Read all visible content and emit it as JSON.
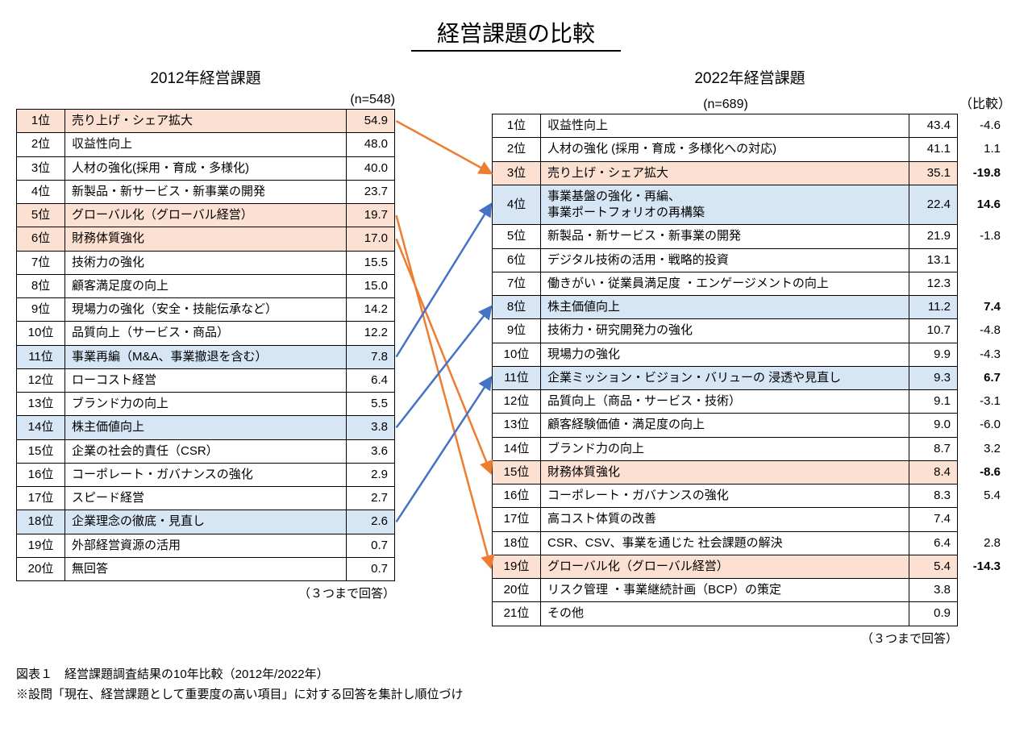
{
  "title": "経営課題の比較",
  "left": {
    "heading": "2012年経営課題",
    "n_label": "(n=548)",
    "footer": "（３つまで回答）",
    "rows": [
      {
        "rank": "1位",
        "label": "売り上げ・シェア拡大",
        "value": "54.9",
        "hl": "orange"
      },
      {
        "rank": "2位",
        "label": "収益性向上",
        "value": "48.0"
      },
      {
        "rank": "3位",
        "label": "人材の強化(採用・育成・多様化)",
        "value": "40.0"
      },
      {
        "rank": "4位",
        "label": "新製品・新サービス・新事業の開発",
        "value": "23.7"
      },
      {
        "rank": "5位",
        "label": "グローバル化（グローバル経営）",
        "value": "19.7",
        "hl": "orange"
      },
      {
        "rank": "6位",
        "label": "財務体質強化",
        "value": "17.0",
        "hl": "orange"
      },
      {
        "rank": "7位",
        "label": "技術力の強化",
        "value": "15.5"
      },
      {
        "rank": "8位",
        "label": "顧客満足度の向上",
        "value": "15.0"
      },
      {
        "rank": "9位",
        "label": "現場力の強化（安全・技能伝承など）",
        "value": "14.2"
      },
      {
        "rank": "10位",
        "label": "品質向上（サービス・商品）",
        "value": "12.2"
      },
      {
        "rank": "11位",
        "label": "事業再編（M&A、事業撤退を含む）",
        "value": "7.8",
        "hl": "blue"
      },
      {
        "rank": "12位",
        "label": "ローコスト経営",
        "value": "6.4"
      },
      {
        "rank": "13位",
        "label": "ブランド力の向上",
        "value": "5.5"
      },
      {
        "rank": "14位",
        "label": "株主価値向上",
        "value": "3.8",
        "hl": "blue"
      },
      {
        "rank": "15位",
        "label": "企業の社会的責任（CSR）",
        "value": "3.6"
      },
      {
        "rank": "16位",
        "label": "コーポレート・ガバナンスの強化",
        "value": "2.9"
      },
      {
        "rank": "17位",
        "label": "スピード経営",
        "value": "2.7"
      },
      {
        "rank": "18位",
        "label": "企業理念の徹底・見直し",
        "value": "2.6",
        "hl": "blue"
      },
      {
        "rank": "19位",
        "label": "外部経営資源の活用",
        "value": "0.7"
      },
      {
        "rank": "20位",
        "label": "無回答",
        "value": "0.7"
      }
    ]
  },
  "right": {
    "heading": "2022年経営課題",
    "n_label": "(n=689)",
    "compare_label": "（比較）",
    "footer": "（３つまで回答）",
    "rows": [
      {
        "rank": "1位",
        "label": "収益性向上",
        "value": "43.4",
        "diff": "-4.6"
      },
      {
        "rank": "2位",
        "label": "人材の強化 (採用・育成・多様化への対応)",
        "value": "41.1",
        "diff": "1.1"
      },
      {
        "rank": "3位",
        "label": "売り上げ・シェア拡大",
        "value": "35.1",
        "diff": "-19.8",
        "hl": "orange",
        "bold": true
      },
      {
        "rank": "4位",
        "label": "事業基盤の強化・再編、\n事業ポートフォリオの再構築",
        "value": "22.4",
        "diff": "14.6",
        "hl": "blue",
        "bold": true
      },
      {
        "rank": "5位",
        "label": "新製品・新サービス・新事業の開発",
        "value": "21.9",
        "diff": "-1.8"
      },
      {
        "rank": "6位",
        "label": "デジタル技術の活用・戦略的投資",
        "value": "13.1",
        "diff": ""
      },
      {
        "rank": "7位",
        "label": "働きがい・従業員満足度 ・エンゲージメントの向上",
        "value": "12.3",
        "diff": ""
      },
      {
        "rank": "8位",
        "label": "株主価値向上",
        "value": "11.2",
        "diff": "7.4",
        "hl": "blue",
        "bold": true
      },
      {
        "rank": "9位",
        "label": "技術力・研究開発力の強化",
        "value": "10.7",
        "diff": "-4.8"
      },
      {
        "rank": "10位",
        "label": "現場力の強化",
        "value": "9.9",
        "diff": "-4.3"
      },
      {
        "rank": "11位",
        "label": "企業ミッション・ビジョン・バリューの 浸透や見直し",
        "value": "9.3",
        "diff": "6.7",
        "hl": "blue",
        "bold": true
      },
      {
        "rank": "12位",
        "label": "品質向上（商品・サービス・技術）",
        "value": "9.1",
        "diff": "-3.1"
      },
      {
        "rank": "13位",
        "label": "顧客経験価値・満足度の向上",
        "value": "9.0",
        "diff": "-6.0"
      },
      {
        "rank": "14位",
        "label": "ブランド力の向上",
        "value": "8.7",
        "diff": "3.2"
      },
      {
        "rank": "15位",
        "label": "財務体質強化",
        "value": "8.4",
        "diff": "-8.6",
        "hl": "orange",
        "bold": true
      },
      {
        "rank": "16位",
        "label": "コーポレート・ガバナンスの強化",
        "value": "8.3",
        "diff": "5.4"
      },
      {
        "rank": "17位",
        "label": "高コスト体質の改善",
        "value": "7.4",
        "diff": ""
      },
      {
        "rank": "18位",
        "label": "CSR、CSV、事業を通じた 社会課題の解決",
        "value": "6.4",
        "diff": "2.8"
      },
      {
        "rank": "19位",
        "label": "グローバル化（グローバル経営）",
        "value": "5.4",
        "diff": "-14.3",
        "hl": "orange",
        "bold": true
      },
      {
        "rank": "20位",
        "label": "リスク管理 ・事業継続計画（BCP）の策定",
        "value": "3.8",
        "diff": ""
      },
      {
        "rank": "21位",
        "label": "その他",
        "value": "0.9",
        "diff": ""
      }
    ]
  },
  "arrows": {
    "orange_color": "#ee7d31",
    "blue_color": "#4472c4",
    "stroke_width": 2.5,
    "lines": [
      {
        "from_side": "left",
        "from_row": 0,
        "to_row": 2,
        "color": "orange"
      },
      {
        "from_side": "left",
        "from_row": 4,
        "to_row": 18,
        "color": "orange"
      },
      {
        "from_side": "left",
        "from_row": 5,
        "to_row": 14,
        "color": "orange"
      },
      {
        "from_side": "left",
        "from_row": 10,
        "to_row": 3,
        "color": "blue"
      },
      {
        "from_side": "left",
        "from_row": 13,
        "to_row": 7,
        "color": "blue"
      },
      {
        "from_side": "left",
        "from_row": 17,
        "to_row": 10,
        "color": "blue"
      }
    ]
  },
  "footnotes": [
    "図表１　経営課題調査結果の10年比較（2012年/2022年）",
    "※設問「現在、経営課題として重要度の高い項目」に対する回答を集計し順位づけ"
  ]
}
